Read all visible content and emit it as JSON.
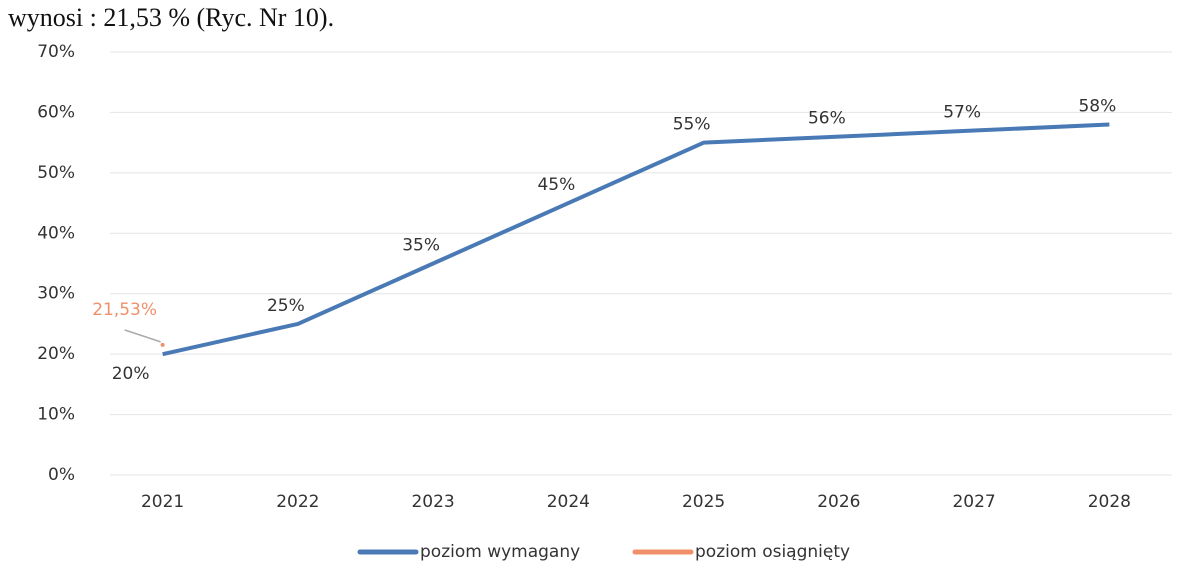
{
  "context_text": "wynosi : 21,53 % (Ryc. Nr 10).",
  "chart_data": {
    "type": "line",
    "categories": [
      "2021",
      "2022",
      "2023",
      "2024",
      "2025",
      "2026",
      "2027",
      "2028"
    ],
    "series": [
      {
        "name": "poziom wymagany",
        "color": "#4a7ab5",
        "values": [
          20,
          25,
          35,
          45,
          55,
          56,
          57,
          58
        ],
        "value_labels": [
          "20%",
          "25%",
          "35%",
          "45%",
          "55%",
          "56%",
          "57%",
          "58%"
        ]
      },
      {
        "name": "poziom osiągnięty",
        "color": "#f0906a",
        "values": [
          21.53,
          null,
          null,
          null,
          null,
          null,
          null,
          null
        ],
        "value_labels": [
          "21,53%",
          null,
          null,
          null,
          null,
          null,
          null,
          null
        ]
      }
    ],
    "ylim": [
      0,
      70
    ],
    "yticks": [
      {
        "value": 0,
        "label": "0%"
      },
      {
        "value": 10,
        "label": "10%"
      },
      {
        "value": 20,
        "label": "20%"
      },
      {
        "value": 30,
        "label": "30%"
      },
      {
        "value": 40,
        "label": "40%"
      },
      {
        "value": 50,
        "label": "50%"
      },
      {
        "value": 60,
        "label": "60%"
      },
      {
        "value": 70,
        "label": "70%"
      }
    ],
    "grid": true,
    "legend": "bottom"
  }
}
